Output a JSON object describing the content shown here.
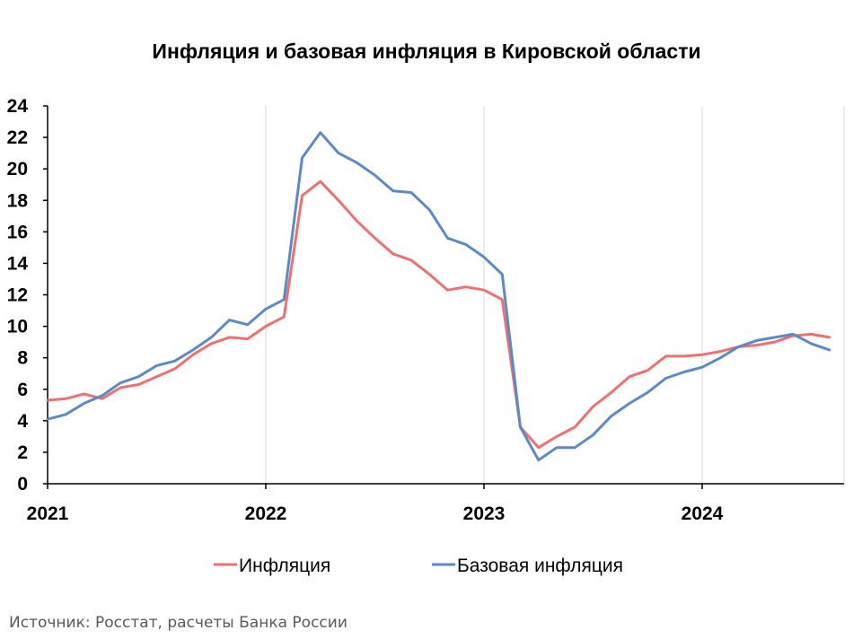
{
  "chart_data": {
    "type": "line",
    "title": "Инфляция и базовая инфляция в Кировской области",
    "xlabel": "",
    "ylabel": "",
    "x_tick_labels": [
      "2021",
      "2022",
      "2023",
      "2024"
    ],
    "y_ticks": [
      0,
      2,
      4,
      6,
      8,
      10,
      12,
      14,
      16,
      18,
      20,
      22,
      24
    ],
    "ylim": [
      0,
      24
    ],
    "grid": "vertical at year marks",
    "legend_position": "bottom",
    "x": [
      "2021-01",
      "2021-02",
      "2021-03",
      "2021-04",
      "2021-05",
      "2021-06",
      "2021-07",
      "2021-08",
      "2021-09",
      "2021-10",
      "2021-11",
      "2021-12",
      "2022-01",
      "2022-02",
      "2022-03",
      "2022-04",
      "2022-05",
      "2022-06",
      "2022-07",
      "2022-08",
      "2022-09",
      "2022-10",
      "2022-11",
      "2022-12",
      "2023-01",
      "2023-02",
      "2023-03",
      "2023-04",
      "2023-05",
      "2023-06",
      "2023-07",
      "2023-08",
      "2023-09",
      "2023-10",
      "2023-11",
      "2023-12",
      "2024-01",
      "2024-02",
      "2024-03",
      "2024-04",
      "2024-05",
      "2024-06",
      "2024-07",
      "2024-08"
    ],
    "series": [
      {
        "name": "Инфляция",
        "color": "#f07070",
        "values": [
          5.3,
          5.4,
          5.7,
          5.4,
          6.1,
          6.3,
          6.8,
          7.3,
          8.2,
          8.9,
          9.3,
          9.2,
          10.0,
          10.6,
          18.3,
          19.2,
          18.0,
          16.7,
          15.6,
          14.6,
          14.2,
          13.3,
          12.3,
          12.5,
          12.3,
          11.7,
          3.6,
          2.3,
          3.0,
          3.6,
          4.9,
          5.8,
          6.8,
          7.2,
          8.1,
          8.1,
          8.2,
          8.4,
          8.7,
          8.8,
          9.0,
          9.4,
          9.5,
          9.3
        ]
      },
      {
        "name": "Базовая инфляция",
        "color": "#5b8ac8",
        "values": [
          4.1,
          4.4,
          5.1,
          5.6,
          6.4,
          6.8,
          7.5,
          7.8,
          8.5,
          9.3,
          10.4,
          10.1,
          11.1,
          11.7,
          20.7,
          22.3,
          21.0,
          20.4,
          19.6,
          18.6,
          18.5,
          17.4,
          15.6,
          15.2,
          14.4,
          13.3,
          3.6,
          1.5,
          2.3,
          2.3,
          3.1,
          4.3,
          5.1,
          5.8,
          6.7,
          7.1,
          7.4,
          8.0,
          8.7,
          9.1,
          9.3,
          9.5,
          8.9,
          8.5
        ]
      }
    ]
  },
  "source": "Источник: Росстат, расчеты Банка России"
}
